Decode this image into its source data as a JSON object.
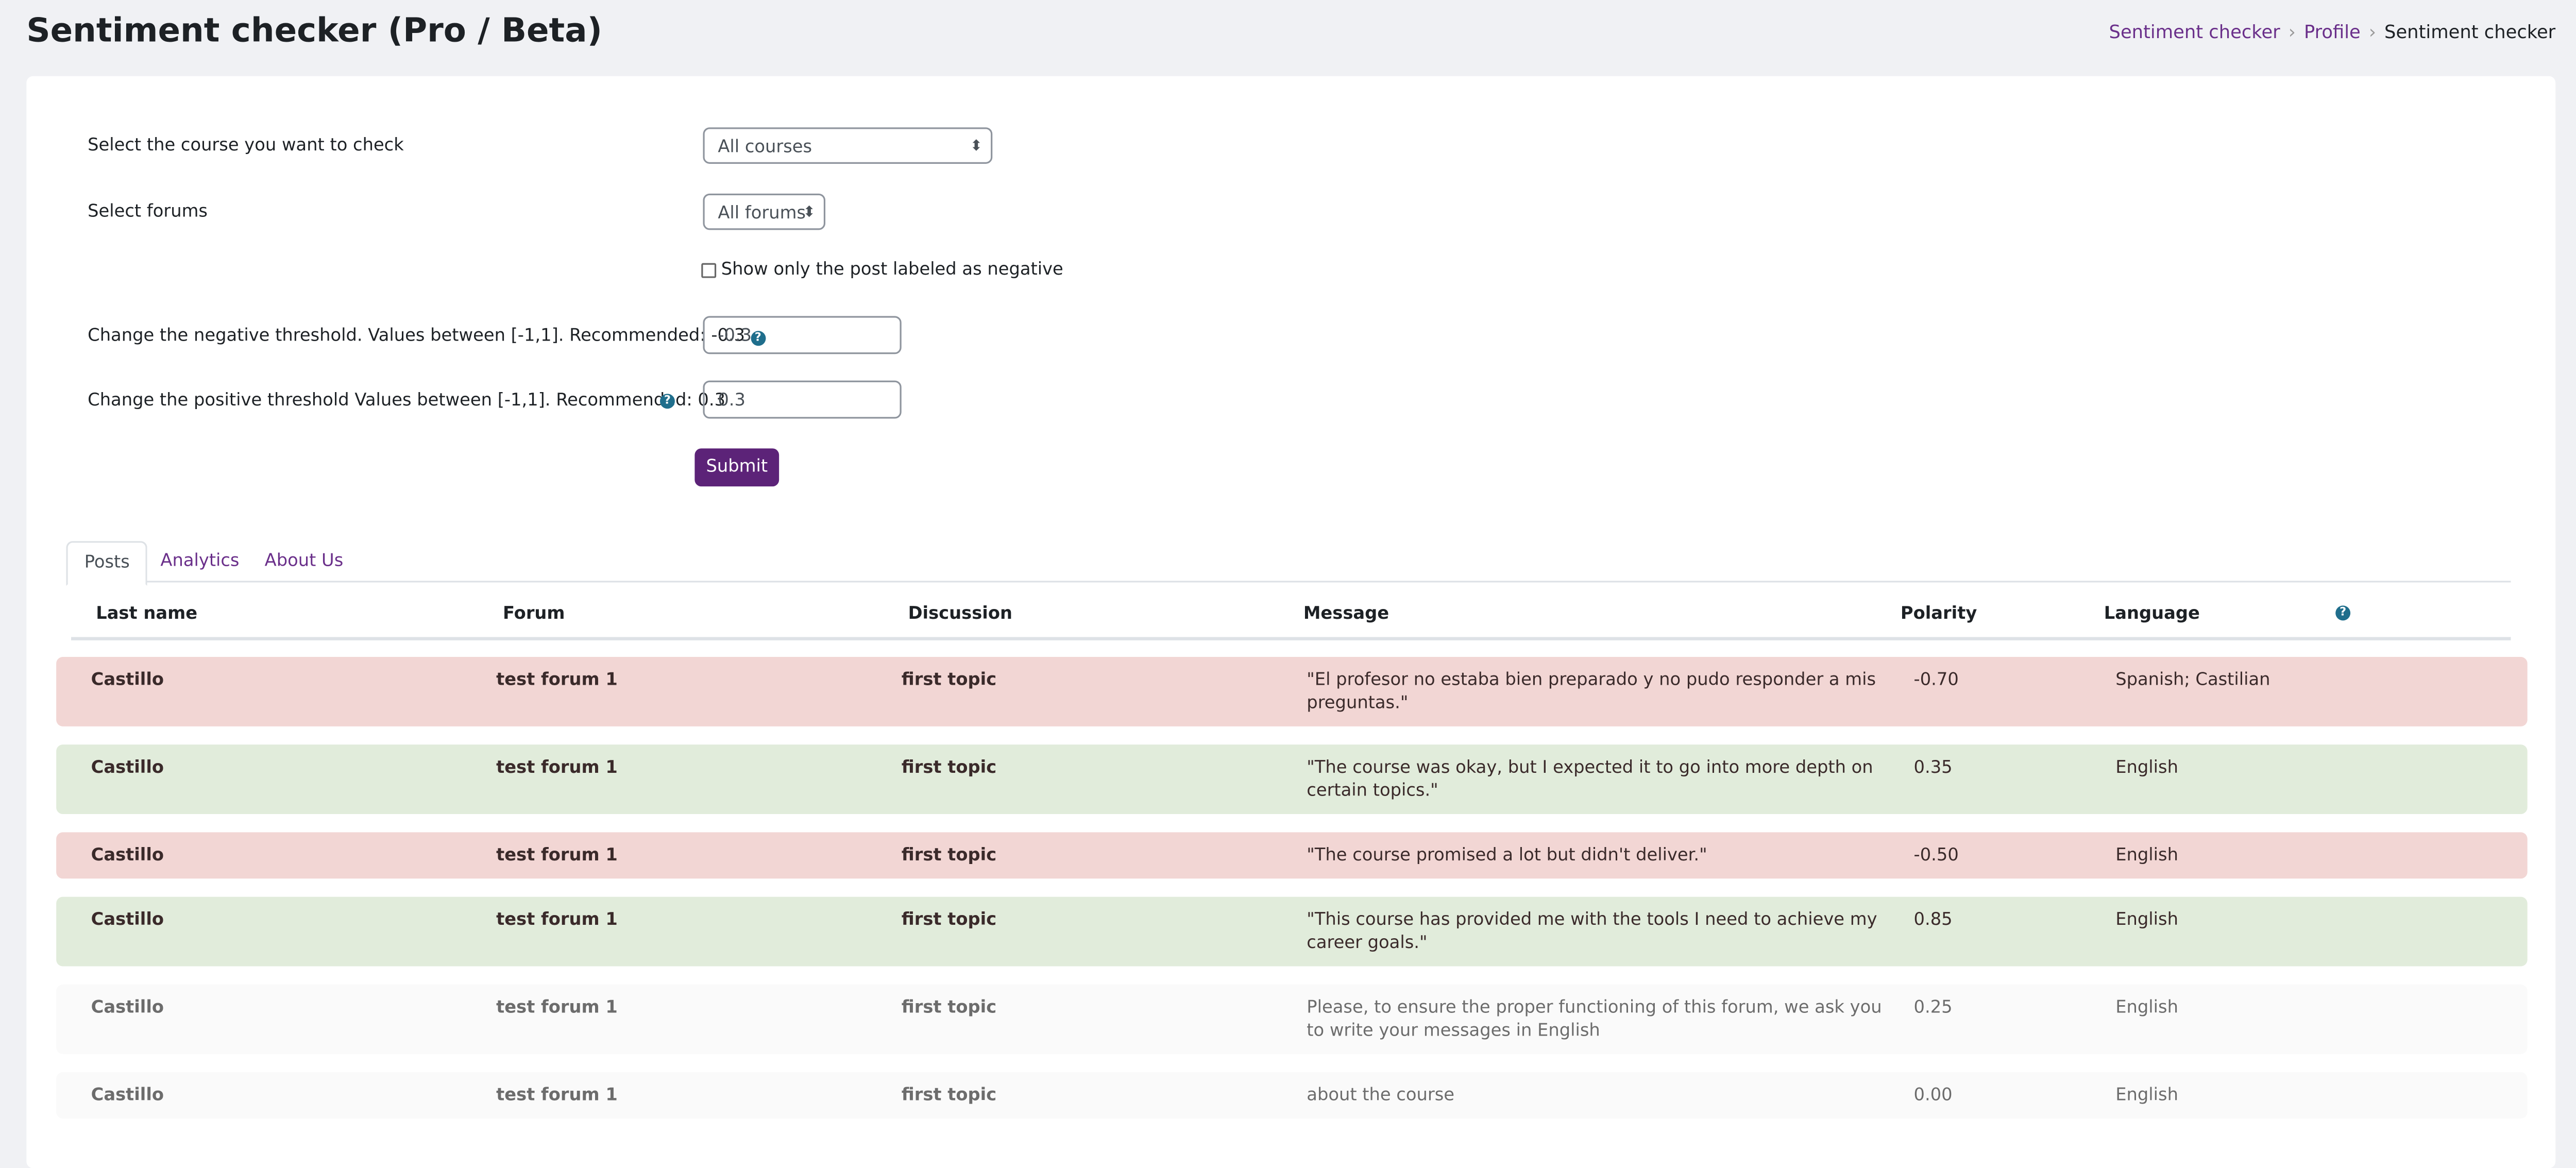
{
  "header": {
    "title": "Sentiment checker (Pro / Beta)",
    "breadcrumb": [
      "Sentiment checker",
      "Profile",
      "Sentiment checker"
    ]
  },
  "form": {
    "course_label": "Select the course you want to check",
    "course_value": "All courses",
    "forums_label": "Select forums",
    "forums_value": "All forums",
    "negative_only_label": "Show only the post labeled as negative",
    "negative_threshold_label": "Change the negative threshold. Values between [-1,1]. Recommended: -0.3",
    "negative_threshold_value": "-0.3",
    "positive_threshold_label": "Change the positive threshold Values between [-1,1]. Recommended: 0.3",
    "positive_threshold_value": "0.3",
    "submit": "Submit"
  },
  "tabs": [
    "Posts",
    "Analytics",
    "About Us"
  ],
  "table": {
    "headers": [
      "Last name",
      "Forum",
      "Discussion",
      "Message",
      "Polarity",
      "Language"
    ],
    "rows": [
      [
        "Castillo",
        "test forum 1",
        "first topic",
        "\"El profesor no estaba bien preparado y no pudo responder a mis preguntas.\"",
        "-0.70",
        "Spanish; Castilian"
      ],
      [
        "Castillo",
        "test forum 1",
        "first topic",
        "\"The course was okay, but I expected it to go into more depth on certain topics.\"",
        "0.35",
        "English"
      ],
      [
        "Castillo",
        "test forum 1",
        "first topic",
        "\"The course promised a lot but didn't deliver.\"",
        "-0.50",
        "English"
      ],
      [
        "Castillo",
        "test forum 1",
        "first topic",
        "\"This course has provided me with the tools I need to achieve my career goals.\"",
        "0.85",
        "English"
      ],
      [
        "Castillo",
        "test forum 1",
        "first topic",
        "Please, to ensure the proper functioning of this forum, we ask you to write your messages in English",
        "0.25",
        "English"
      ],
      [
        "Castillo",
        "test forum 1",
        "first topic",
        "about the course",
        "0.00",
        "English"
      ]
    ]
  }
}
